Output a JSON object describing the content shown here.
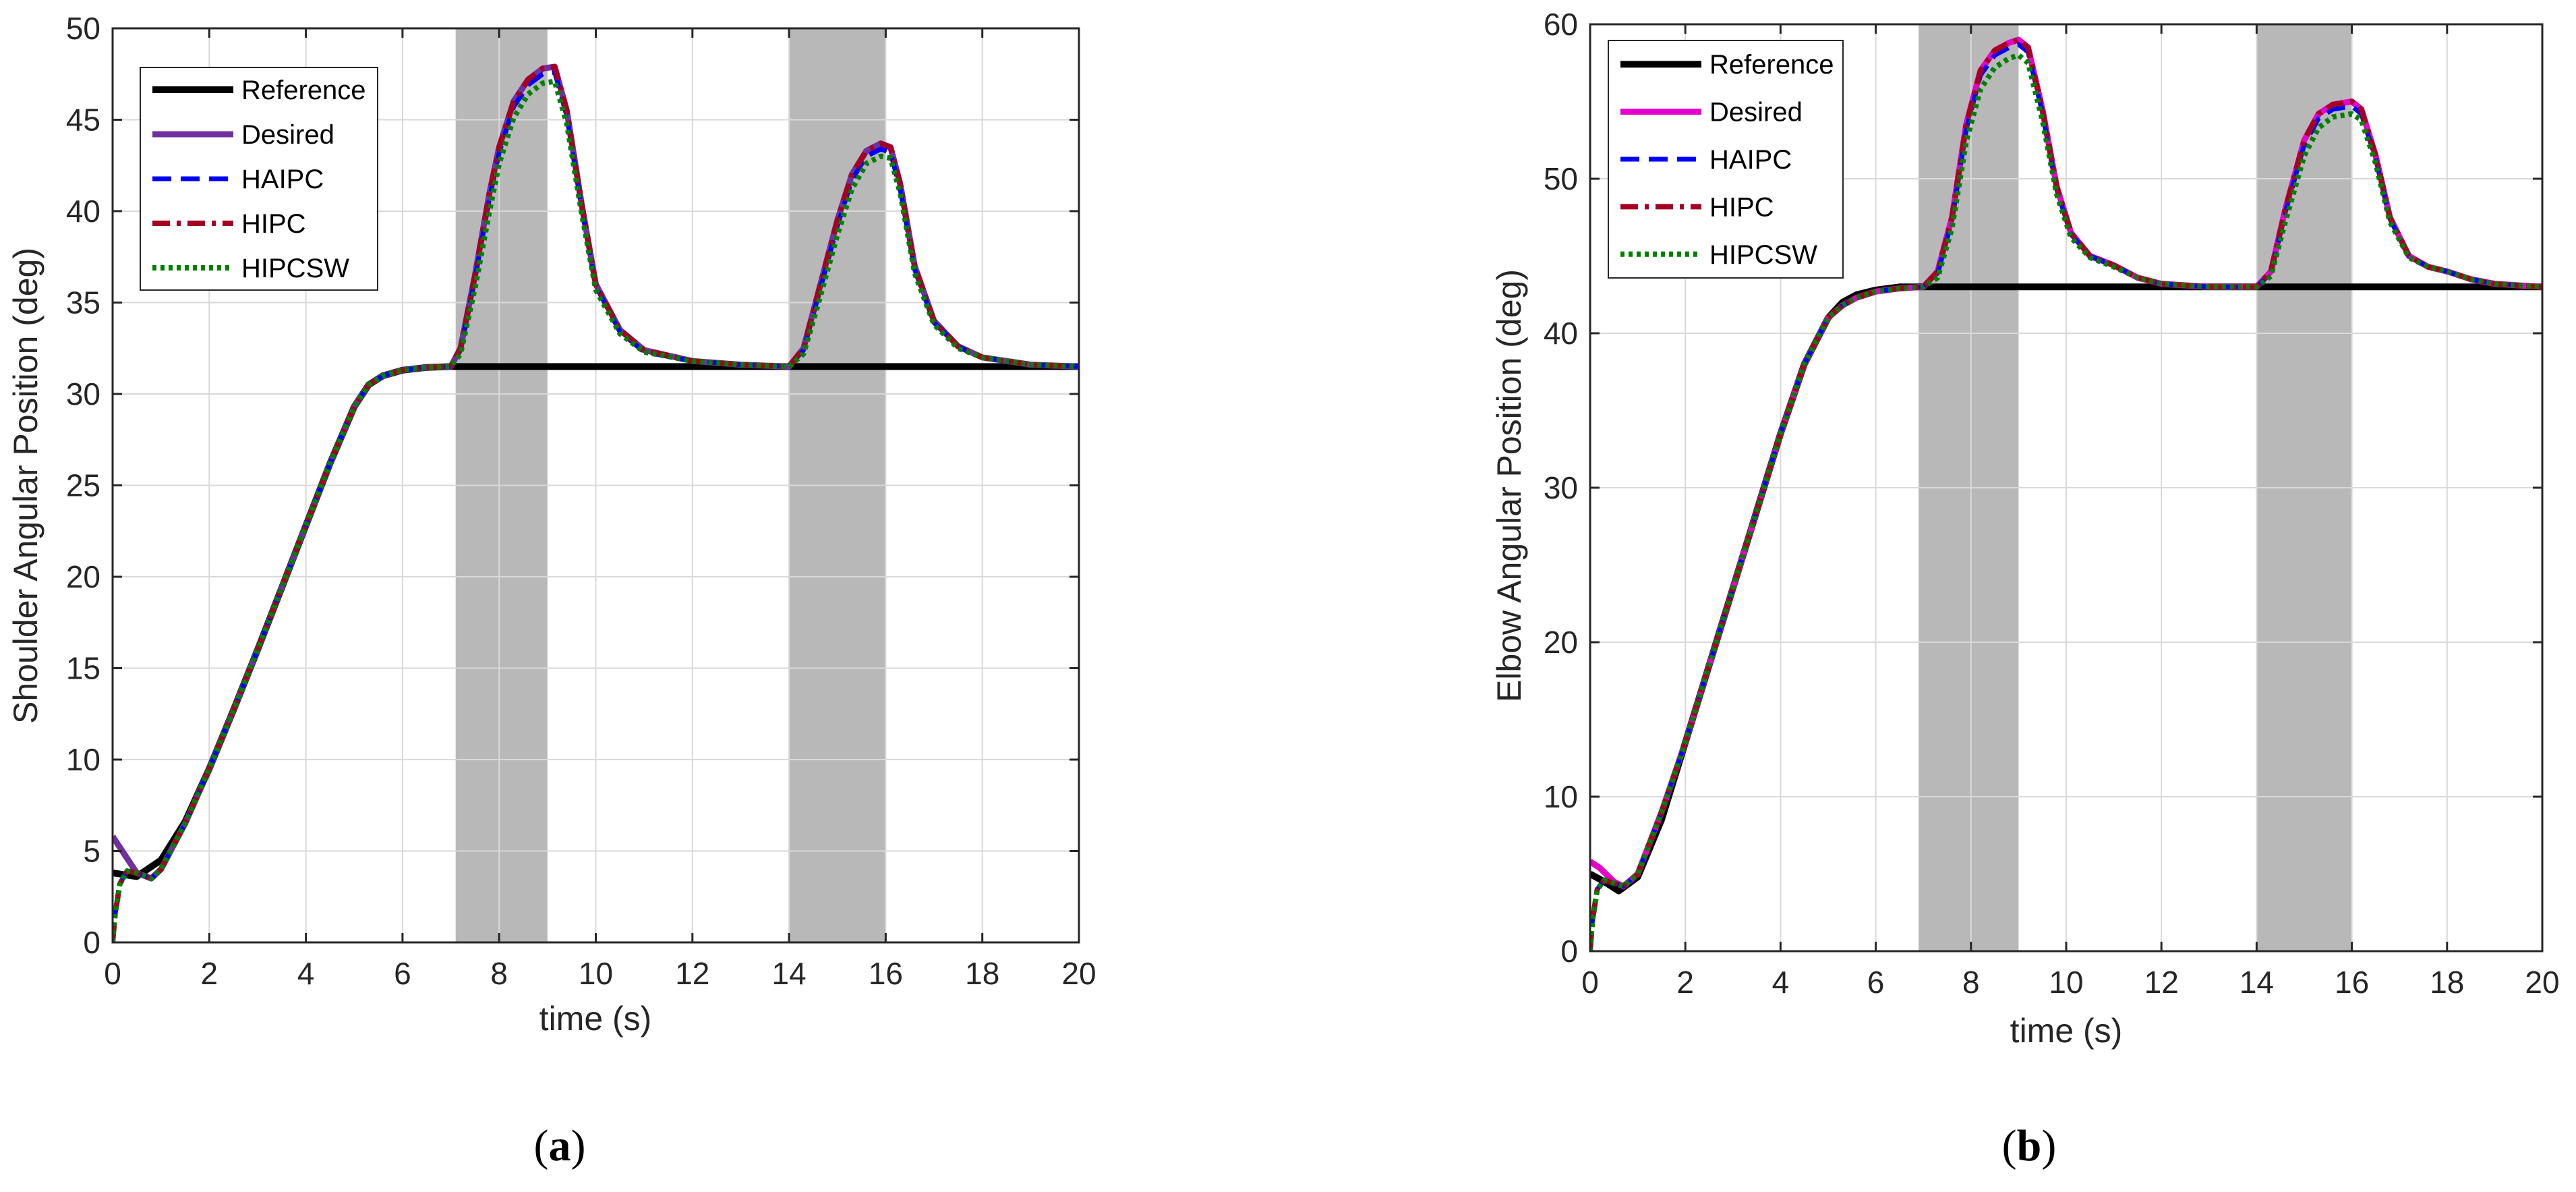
{
  "chart_data": [
    {
      "type": "line",
      "caption": "(a)",
      "caption_letter": "a",
      "xlabel": "time (s)",
      "ylabel": "Shoulder Angular Position (deg)",
      "xlim": [
        0,
        20
      ],
      "ylim": [
        0,
        50
      ],
      "xticks": [
        0,
        2,
        4,
        6,
        8,
        10,
        12,
        14,
        16,
        18,
        20
      ],
      "yticks": [
        0,
        5,
        10,
        15,
        20,
        25,
        30,
        35,
        40,
        45,
        50
      ],
      "grid": true,
      "legend_position": "top-left",
      "shaded_intervals": [
        [
          7.1,
          9.0
        ],
        [
          14.0,
          16.0
        ]
      ],
      "series": [
        {
          "name": "Reference",
          "color": "#000000",
          "style": "solid",
          "x": [
            0,
            0.5,
            1,
            1.5,
            2,
            2.5,
            3,
            3.5,
            4,
            4.5,
            5,
            5.3,
            5.6,
            6,
            6.5,
            7,
            7.1,
            20
          ],
          "y": [
            3.8,
            3.6,
            4.5,
            6.6,
            9.5,
            12.7,
            16.0,
            19.4,
            22.8,
            26.2,
            29.3,
            30.5,
            31.0,
            31.3,
            31.45,
            31.5,
            31.5,
            31.5
          ]
        },
        {
          "name": "Desired",
          "color": "#7030a0",
          "style": "solid",
          "x": [
            0,
            0.2,
            0.5,
            0.8,
            1,
            1.5,
            2,
            2.5,
            3,
            3.5,
            4,
            4.5,
            5,
            5.3,
            5.6,
            6,
            6.5,
            7,
            7.2,
            7.5,
            7.8,
            8,
            8.3,
            8.6,
            8.9,
            9.15,
            9.4,
            9.7,
            10,
            10.5,
            11,
            12,
            13,
            14,
            14.3,
            14.6,
            15,
            15.3,
            15.6,
            15.9,
            16.1,
            16.3,
            16.6,
            17,
            17.5,
            18,
            19,
            20
          ],
          "y": [
            5.8,
            5.0,
            3.8,
            3.5,
            4.0,
            6.5,
            9.5,
            12.7,
            16.0,
            19.4,
            22.8,
            26.2,
            29.3,
            30.5,
            31.0,
            31.3,
            31.45,
            31.5,
            32.5,
            36.5,
            41.0,
            43.5,
            46.0,
            47.2,
            47.8,
            47.9,
            45.5,
            40.5,
            36.0,
            33.5,
            32.4,
            31.8,
            31.6,
            31.5,
            32.5,
            35.5,
            39.5,
            42.0,
            43.3,
            43.7,
            43.5,
            41.5,
            37.0,
            34.0,
            32.6,
            32.0,
            31.6,
            31.5
          ]
        },
        {
          "name": "HAIPC",
          "color": "#0000ff",
          "style": "dashed",
          "x": [
            0,
            0.05,
            0.15,
            0.3,
            0.5,
            0.8,
            1,
            1.5,
            2,
            2.5,
            3,
            3.5,
            4,
            4.5,
            5,
            5.3,
            5.6,
            6,
            6.5,
            7,
            7.2,
            7.5,
            7.8,
            8,
            8.3,
            8.6,
            8.9,
            9.15,
            9.4,
            9.7,
            10,
            10.5,
            11,
            12,
            13,
            14,
            14.3,
            14.6,
            15,
            15.3,
            15.6,
            15.9,
            16.1,
            16.3,
            16.6,
            17,
            17.5,
            18,
            19,
            20
          ],
          "y": [
            0,
            1.5,
            3.2,
            3.9,
            3.8,
            3.5,
            4.0,
            6.5,
            9.5,
            12.7,
            16.0,
            19.4,
            22.8,
            26.2,
            29.3,
            30.5,
            31.0,
            31.3,
            31.45,
            31.5,
            32.4,
            36.3,
            40.7,
            43.2,
            45.7,
            46.9,
            47.5,
            47.6,
            45.2,
            40.3,
            35.9,
            33.4,
            32.3,
            31.8,
            31.6,
            31.5,
            32.4,
            35.3,
            39.2,
            41.7,
            43.0,
            43.4,
            43.2,
            41.2,
            36.8,
            33.9,
            32.6,
            32.0,
            31.6,
            31.5
          ]
        },
        {
          "name": "HIPC",
          "color": "#a50021",
          "style": "dashdot",
          "x": [
            0,
            0.05,
            0.15,
            0.3,
            0.5,
            0.8,
            1,
            1.5,
            2,
            2.5,
            3,
            3.5,
            4,
            4.5,
            5,
            5.3,
            5.6,
            6,
            6.5,
            7,
            7.2,
            7.5,
            7.8,
            8,
            8.3,
            8.6,
            8.9,
            9.15,
            9.4,
            9.7,
            10,
            10.5,
            11,
            12,
            13,
            14,
            14.3,
            14.6,
            15,
            15.3,
            15.6,
            15.9,
            16.1,
            16.3,
            16.6,
            17,
            17.5,
            18,
            19,
            20
          ],
          "y": [
            0,
            1.5,
            3.2,
            3.9,
            3.8,
            3.5,
            4.0,
            6.5,
            9.5,
            12.7,
            16.0,
            19.4,
            22.8,
            26.2,
            29.3,
            30.5,
            31.0,
            31.3,
            31.45,
            31.5,
            32.5,
            36.5,
            41.0,
            43.5,
            46.0,
            47.2,
            47.8,
            47.9,
            45.5,
            40.5,
            36.0,
            33.5,
            32.4,
            31.8,
            31.6,
            31.5,
            32.5,
            35.5,
            39.5,
            42.0,
            43.3,
            43.7,
            43.5,
            41.5,
            37.0,
            34.0,
            32.6,
            32.0,
            31.6,
            31.5
          ]
        },
        {
          "name": "HIPCSW",
          "color": "#008000",
          "style": "dotted",
          "x": [
            0,
            0.05,
            0.15,
            0.3,
            0.5,
            0.8,
            1,
            1.5,
            2,
            2.5,
            3,
            3.5,
            4,
            4.5,
            5,
            5.3,
            5.6,
            6,
            6.5,
            7,
            7.2,
            7.5,
            7.8,
            8,
            8.3,
            8.6,
            8.9,
            9.15,
            9.4,
            9.7,
            10,
            10.5,
            11,
            12,
            13,
            14,
            14.3,
            14.6,
            15,
            15.3,
            15.6,
            15.9,
            16.1,
            16.3,
            16.6,
            17,
            17.5,
            18,
            19,
            20
          ],
          "y": [
            0,
            1.5,
            3.2,
            3.9,
            3.8,
            3.5,
            4.0,
            6.5,
            9.5,
            12.7,
            16.0,
            19.4,
            22.8,
            26.2,
            29.3,
            30.5,
            31.0,
            31.3,
            31.45,
            31.5,
            32.2,
            35.8,
            40.0,
            42.6,
            45.1,
            46.4,
            47.0,
            47.1,
            44.8,
            40.0,
            35.7,
            33.3,
            32.3,
            31.8,
            31.6,
            31.5,
            32.2,
            34.9,
            38.7,
            41.2,
            42.6,
            43.0,
            42.9,
            41.0,
            36.6,
            33.8,
            32.5,
            32.0,
            31.6,
            31.5
          ]
        }
      ]
    },
    {
      "type": "line",
      "caption": "(b)",
      "caption_letter": "b",
      "xlabel": "time (s)",
      "ylabel": "Elbow Angular Position (deg)",
      "xlim": [
        0,
        20
      ],
      "ylim": [
        0,
        60
      ],
      "xticks": [
        0,
        2,
        4,
        6,
        8,
        10,
        12,
        14,
        16,
        18,
        20
      ],
      "yticks": [
        0,
        10,
        20,
        30,
        40,
        50,
        60
      ],
      "grid": true,
      "legend_position": "top-left",
      "shaded_intervals": [
        [
          6.9,
          9.0
        ],
        [
          14.0,
          16.0
        ]
      ],
      "series": [
        {
          "name": "Reference",
          "color": "#000000",
          "style": "solid",
          "x": [
            0,
            0.3,
            0.6,
            1,
            1.5,
            2,
            2.5,
            3,
            3.5,
            4,
            4.5,
            5,
            5.3,
            5.6,
            6,
            6.5,
            7,
            20
          ],
          "y": [
            5.0,
            4.5,
            3.9,
            4.8,
            8.5,
            13.5,
            18.5,
            23.5,
            28.5,
            33.5,
            38.0,
            41.0,
            42.0,
            42.5,
            42.8,
            43.0,
            43.0,
            43.0
          ]
        },
        {
          "name": "Desired",
          "color": "#e600cc",
          "style": "solid",
          "x": [
            0,
            0.2,
            0.5,
            0.7,
            1,
            1.5,
            2,
            2.5,
            3,
            3.5,
            4,
            4.5,
            5,
            5.3,
            5.6,
            6,
            6.5,
            7,
            7.3,
            7.6,
            7.9,
            8.2,
            8.5,
            8.8,
            9.0,
            9.2,
            9.5,
            9.8,
            10.1,
            10.5,
            11,
            11.5,
            12,
            13,
            14,
            14.3,
            14.6,
            15,
            15.3,
            15.6,
            16,
            16.2,
            16.5,
            16.8,
            17.2,
            17.6,
            18,
            18.5,
            19,
            20
          ],
          "y": [
            5.8,
            5.4,
            4.5,
            4.2,
            5.0,
            9.0,
            13.5,
            18.5,
            23.5,
            28.5,
            33.5,
            38.0,
            41.0,
            41.8,
            42.3,
            42.7,
            42.9,
            43.0,
            44.0,
            47.5,
            53.5,
            57.0,
            58.3,
            58.8,
            59.0,
            58.5,
            54.5,
            49.5,
            46.5,
            45.0,
            44.4,
            43.6,
            43.2,
            43.0,
            43.0,
            44.0,
            48.0,
            52.5,
            54.2,
            54.8,
            55.0,
            54.5,
            51.5,
            47.5,
            45.0,
            44.3,
            44.0,
            43.5,
            43.2,
            43.0
          ]
        },
        {
          "name": "HAIPC",
          "color": "#0000ff",
          "style": "dashed",
          "x": [
            0,
            0.05,
            0.15,
            0.3,
            0.5,
            0.7,
            1,
            1.5,
            2,
            2.5,
            3,
            3.5,
            4,
            4.5,
            5,
            5.3,
            5.6,
            6,
            6.5,
            7,
            7.3,
            7.6,
            7.9,
            8.2,
            8.5,
            8.8,
            9.0,
            9.2,
            9.5,
            9.8,
            10.1,
            10.5,
            11,
            11.5,
            12,
            13,
            14,
            14.3,
            14.6,
            15,
            15.3,
            15.6,
            16,
            16.2,
            16.5,
            16.8,
            17.2,
            17.6,
            18,
            18.5,
            19,
            20
          ],
          "y": [
            0,
            2.0,
            4.0,
            4.6,
            4.4,
            4.2,
            5.0,
            9.0,
            13.5,
            18.5,
            23.5,
            28.5,
            33.5,
            38.0,
            41.0,
            41.8,
            42.3,
            42.7,
            42.9,
            43.0,
            43.9,
            47.3,
            53.2,
            56.7,
            58.0,
            58.5,
            58.7,
            58.2,
            54.3,
            49.3,
            46.4,
            45.0,
            44.4,
            43.6,
            43.2,
            43.0,
            43.0,
            43.9,
            47.8,
            52.2,
            53.9,
            54.5,
            54.7,
            54.2,
            51.3,
            47.4,
            45.0,
            44.3,
            44.0,
            43.5,
            43.2,
            43.0
          ]
        },
        {
          "name": "HIPC",
          "color": "#a50021",
          "style": "dashdot",
          "x": [
            0,
            0.05,
            0.15,
            0.3,
            0.5,
            0.7,
            1,
            1.5,
            2,
            2.5,
            3,
            3.5,
            4,
            4.5,
            5,
            5.3,
            5.6,
            6,
            6.5,
            7,
            7.3,
            7.6,
            7.9,
            8.2,
            8.5,
            8.8,
            9.0,
            9.2,
            9.5,
            9.8,
            10.1,
            10.5,
            11,
            11.5,
            12,
            13,
            14,
            14.3,
            14.6,
            15,
            15.3,
            15.6,
            16,
            16.2,
            16.5,
            16.8,
            17.2,
            17.6,
            18,
            18.5,
            19,
            20
          ],
          "y": [
            0,
            2.0,
            4.0,
            4.6,
            4.4,
            4.2,
            5.0,
            9.0,
            13.5,
            18.5,
            23.5,
            28.5,
            33.5,
            38.0,
            41.0,
            41.8,
            42.3,
            42.7,
            42.9,
            43.0,
            44.0,
            47.5,
            53.5,
            57.0,
            58.3,
            58.8,
            59.0,
            58.5,
            54.5,
            49.5,
            46.5,
            45.0,
            44.4,
            43.6,
            43.2,
            43.0,
            43.0,
            44.0,
            48.0,
            52.5,
            54.2,
            54.8,
            55.0,
            54.5,
            51.5,
            47.5,
            45.0,
            44.3,
            44.0,
            43.5,
            43.2,
            43.0
          ]
        },
        {
          "name": "HIPCSW",
          "color": "#008000",
          "style": "dotted",
          "x": [
            0,
            0.05,
            0.15,
            0.3,
            0.5,
            0.7,
            1,
            1.5,
            2,
            2.5,
            3,
            3.5,
            4,
            4.5,
            5,
            5.3,
            5.6,
            6,
            6.5,
            7,
            7.3,
            7.6,
            7.9,
            8.2,
            8.5,
            8.8,
            9.0,
            9.2,
            9.5,
            9.8,
            10.1,
            10.5,
            11,
            11.5,
            12,
            13,
            14,
            14.3,
            14.6,
            15,
            15.3,
            15.6,
            16,
            16.2,
            16.5,
            16.8,
            17.2,
            17.6,
            18,
            18.5,
            19,
            20
          ],
          "y": [
            0,
            2.0,
            4.0,
            4.6,
            4.4,
            4.2,
            5.0,
            9.0,
            13.5,
            18.5,
            23.5,
            28.5,
            33.5,
            38.0,
            41.0,
            41.8,
            42.3,
            42.7,
            42.9,
            43.0,
            43.6,
            46.8,
            52.4,
            55.8,
            57.2,
            57.8,
            58.0,
            57.5,
            53.8,
            49.0,
            46.2,
            44.9,
            44.3,
            43.6,
            43.2,
            43.0,
            43.0,
            43.7,
            47.2,
            51.5,
            53.3,
            54.0,
            54.2,
            53.8,
            51.0,
            47.2,
            44.9,
            44.3,
            44.0,
            43.5,
            43.2,
            43.0
          ]
        }
      ]
    }
  ]
}
